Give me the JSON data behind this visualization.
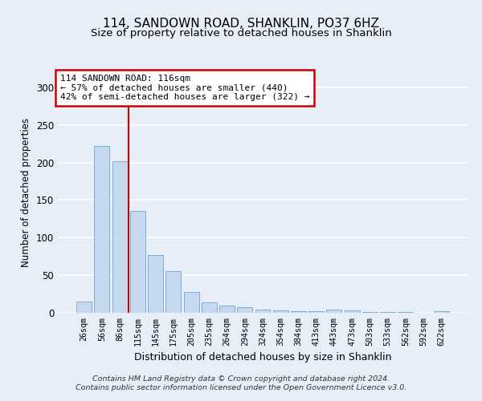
{
  "title": "114, SANDOWN ROAD, SHANKLIN, PO37 6HZ",
  "subtitle": "Size of property relative to detached houses in Shanklin",
  "xlabel": "Distribution of detached houses by size in Shanklin",
  "ylabel": "Number of detached properties",
  "categories": [
    "26sqm",
    "56sqm",
    "86sqm",
    "115sqm",
    "145sqm",
    "175sqm",
    "205sqm",
    "235sqm",
    "264sqm",
    "294sqm",
    "324sqm",
    "354sqm",
    "384sqm",
    "413sqm",
    "443sqm",
    "473sqm",
    "503sqm",
    "533sqm",
    "562sqm",
    "592sqm",
    "622sqm"
  ],
  "values": [
    15,
    222,
    202,
    135,
    77,
    55,
    28,
    14,
    10,
    7,
    4,
    3,
    2,
    2,
    4,
    3,
    1,
    1,
    1,
    0,
    2
  ],
  "bar_color": "#c5d8ee",
  "bar_edge_color": "#7bafd4",
  "vline_x": 2.5,
  "vline_color": "#cc0000",
  "annotation_text": "114 SANDOWN ROAD: 116sqm\n← 57% of detached houses are smaller (440)\n42% of semi-detached houses are larger (322) →",
  "annotation_box_color": "#ffffff",
  "annotation_box_edge_color": "#cc0000",
  "footer_text": "Contains HM Land Registry data © Crown copyright and database right 2024.\nContains public sector information licensed under the Open Government Licence v3.0.",
  "ylim": [
    0,
    320
  ],
  "background_color": "#e8eef8"
}
